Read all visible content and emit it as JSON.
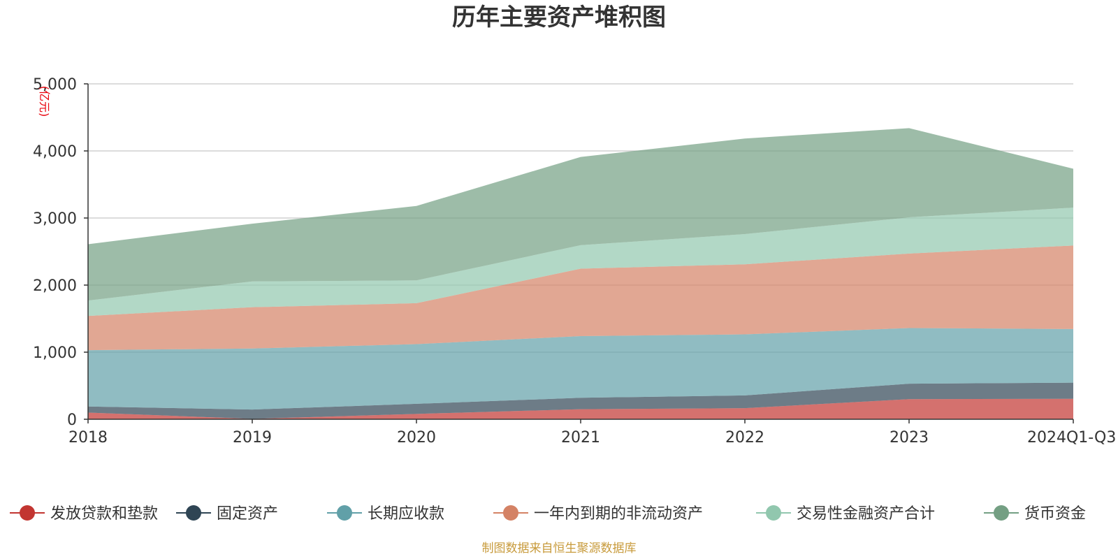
{
  "chart_data": {
    "type": "area",
    "stacked": true,
    "title": "历年主要资产堆积图",
    "unit_label": "(亿元)",
    "categories": [
      "2018",
      "2019",
      "2020",
      "2021",
      "2022",
      "2023",
      "2024Q1-Q3"
    ],
    "ylim": [
      0,
      5000
    ],
    "yticks": [
      0,
      1000,
      2000,
      3000,
      4000,
      5000
    ],
    "ytick_labels": [
      "0",
      "1,000",
      "2,000",
      "3,000",
      "4,000",
      "5,000"
    ],
    "grid": true,
    "legend_position": "bottom",
    "series": [
      {
        "name": "发放贷款和垫款",
        "color": "#c23531",
        "values": [
          100,
          5,
          80,
          150,
          165,
          300,
          305
        ]
      },
      {
        "name": "固定资产",
        "color": "#2f4554",
        "values": [
          90,
          140,
          150,
          170,
          190,
          230,
          240
        ]
      },
      {
        "name": "长期应收款",
        "color": "#61a0a8",
        "values": [
          840,
          910,
          890,
          920,
          910,
          830,
          800
        ]
      },
      {
        "name": "一年内到期的非流动资产",
        "color": "#d48265",
        "values": [
          510,
          615,
          610,
          1005,
          1045,
          1110,
          1245
        ]
      },
      {
        "name": "交易性金融资产合计",
        "color": "#91c7ae",
        "values": [
          230,
          385,
          340,
          350,
          450,
          540,
          565
        ]
      },
      {
        "name": "货币资金",
        "color": "#749f83",
        "values": [
          840,
          860,
          1110,
          1315,
          1425,
          1330,
          580
        ]
      }
    ],
    "source_note": "制图数据来自恒生聚源数据库"
  }
}
